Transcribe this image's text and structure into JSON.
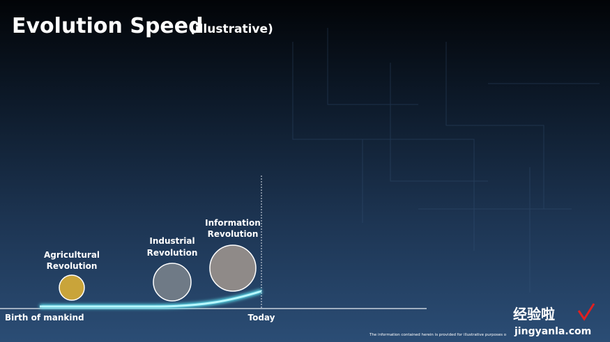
{
  "header": {
    "title": "Evolution Speed",
    "subtitle": "(illustrative)"
  },
  "timeline": {
    "start": "Birth of mankind",
    "end": "Today",
    "stages": [
      {
        "lines": [
          "Agricultural",
          "Revolution"
        ]
      },
      {
        "lines": [
          "Industrial",
          "Revolution"
        ]
      },
      {
        "lines": [
          "Information",
          "Revolution"
        ]
      }
    ]
  },
  "footer": {
    "note": "The information contained herein is provided for illustrative purposes o"
  },
  "watermark": {
    "name": "经验啦",
    "site": "jingyanla.com"
  }
}
